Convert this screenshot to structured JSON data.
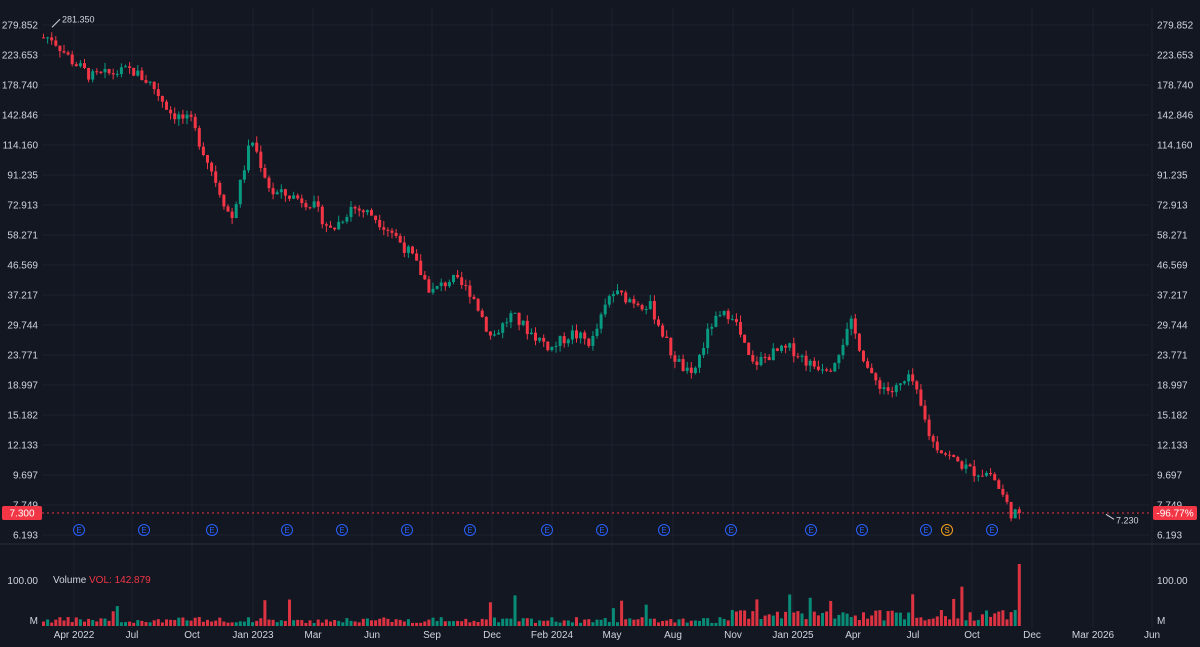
{
  "colors": {
    "background": "#131722",
    "grid": "#1e222d",
    "up": "#089981",
    "down": "#f23645",
    "text": "#d1d4dc",
    "earnings": "#2962ff",
    "split": "#f7a21b"
  },
  "chart_data": {
    "type": "candlestick",
    "price_axis": {
      "scale": "log",
      "ticks": [
        "279.852",
        "223.653",
        "178.740",
        "142.846",
        "114.160",
        "91.235",
        "72.913",
        "58.271",
        "46.569",
        "37.217",
        "29.744",
        "23.771",
        "18.997",
        "15.182",
        "12.133",
        "9.697",
        "7.749",
        "6.193"
      ]
    },
    "time_axis": {
      "labels": [
        "Apr 2022",
        "Jul",
        "Oct",
        "Jan 2023",
        "Mar",
        "Jun",
        "Sep",
        "Dec",
        "Feb 2024",
        "May",
        "Aug",
        "Nov",
        "Jan 2025",
        "Apr",
        "Jul",
        "Oct",
        "Dec",
        "Mar 2026",
        "Jun"
      ]
    },
    "high_marker": "281.350",
    "low_marker": "7.230",
    "last_price": "7.300",
    "change_label": "-96.77%",
    "events": [
      "E",
      "E",
      "E",
      "E",
      "E",
      "E",
      "E",
      "E",
      "E",
      "E",
      "E",
      "E",
      "E",
      "S",
      "E",
      "E"
    ],
    "volume": {
      "title": "Volume",
      "value_label": "VOL: 142.879",
      "ticks": [
        "100.00",
        "M"
      ]
    },
    "series_trend": [
      {
        "t": "Mar 2022",
        "price": 255
      },
      {
        "t": "Apr 2022",
        "price": 215
      },
      {
        "t": "May 2022",
        "price": 190
      },
      {
        "t": "Jul 2022",
        "price": 200
      },
      {
        "t": "Aug 2022",
        "price": 180
      },
      {
        "t": "Sep 2022",
        "price": 145
      },
      {
        "t": "Oct 2022",
        "price": 135
      },
      {
        "t": "Nov 2022",
        "price": 95
      },
      {
        "t": "Dec 2022",
        "price": 65
      },
      {
        "t": "Jan 2023",
        "price": 120
      },
      {
        "t": "Feb 2023",
        "price": 80
      },
      {
        "t": "Mar 2023",
        "price": 78
      },
      {
        "t": "Apr 2023",
        "price": 74
      },
      {
        "t": "May 2023",
        "price": 60
      },
      {
        "t": "Jun 2023",
        "price": 72
      },
      {
        "t": "Jul 2023",
        "price": 68
      },
      {
        "t": "Aug 2023",
        "price": 60
      },
      {
        "t": "Sep 2023",
        "price": 50
      },
      {
        "t": "Oct 2023",
        "price": 38
      },
      {
        "t": "Nov 2023",
        "price": 42
      },
      {
        "t": "Dec 2023",
        "price": 38
      },
      {
        "t": "Jan 2024",
        "price": 27
      },
      {
        "t": "Feb 2024",
        "price": 32
      },
      {
        "t": "Mar 2024",
        "price": 28
      },
      {
        "t": "Apr 2024",
        "price": 25
      },
      {
        "t": "May 2024",
        "price": 28
      },
      {
        "t": "Jun 2024",
        "price": 26
      },
      {
        "t": "Jul 2024",
        "price": 38
      },
      {
        "t": "Aug 2024",
        "price": 36
      },
      {
        "t": "Sep 2024",
        "price": 34
      },
      {
        "t": "Oct 2024",
        "price": 24
      },
      {
        "t": "Nov 2024",
        "price": 20
      },
      {
        "t": "Dec 2024",
        "price": 30
      },
      {
        "t": "Jan 2025",
        "price": 33
      },
      {
        "t": "Feb 2025",
        "price": 22
      },
      {
        "t": "Mar 2025",
        "price": 24
      },
      {
        "t": "Apr 2025",
        "price": 25
      },
      {
        "t": "May 2025",
        "price": 22
      },
      {
        "t": "Jun 2025",
        "price": 22
      },
      {
        "t": "Jul 2025",
        "price": 30
      },
      {
        "t": "Aug 2025",
        "price": 20
      },
      {
        "t": "Sep 2025",
        "price": 18
      },
      {
        "t": "Oct 2025",
        "price": 20
      },
      {
        "t": "Nov 2025",
        "price": 12.5
      },
      {
        "t": "Dec 2025",
        "price": 11
      },
      {
        "t": "Jan 2026",
        "price": 10
      },
      {
        "t": "Feb 2026",
        "price": 9.8
      },
      {
        "t": "Mar 2026",
        "price": 7.3
      }
    ]
  }
}
